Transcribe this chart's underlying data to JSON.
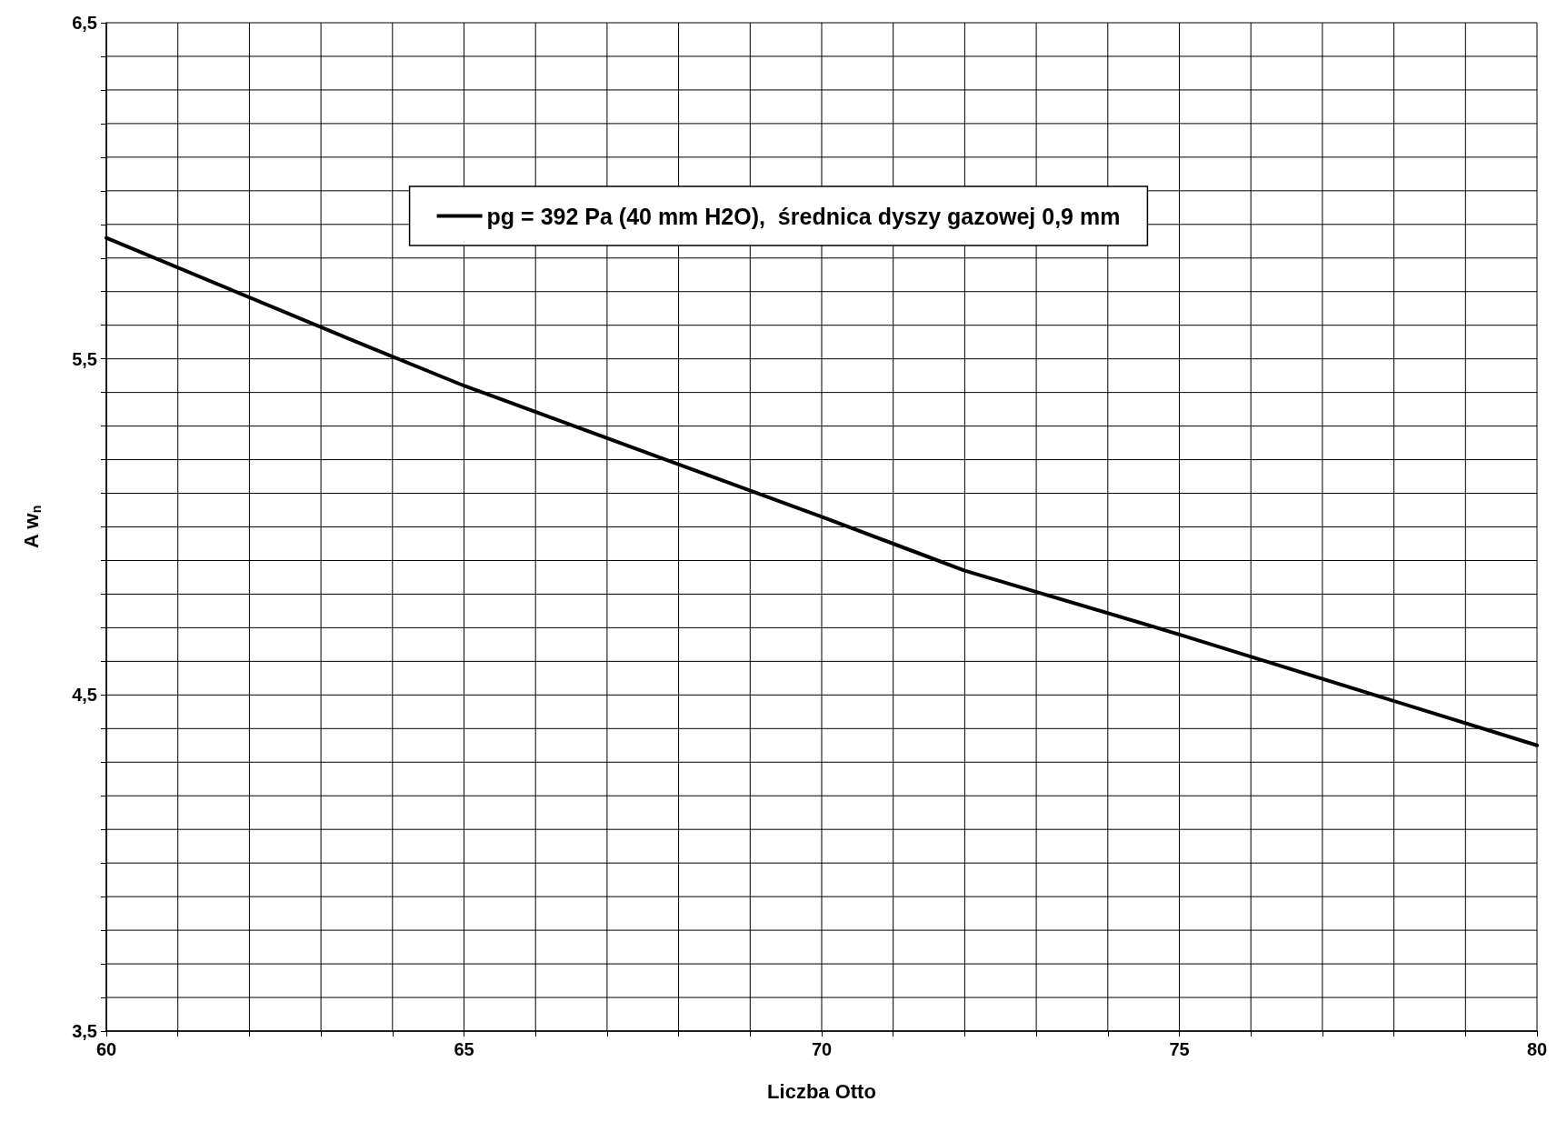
{
  "chart_data": {
    "type": "line",
    "xlabel": "Liczba Otto",
    "ylabel": "A w$_{n}$",
    "series": [
      {
        "name": "pg = 392 Pa (40 mm H2O),  średnica dyszy gazowej 0,9 mm",
        "color": "#000000",
        "x": [
          60,
          63.5,
          65,
          70,
          72,
          75,
          80
        ],
        "values": [
          5.86,
          5.55,
          5.42,
          5.03,
          4.87,
          4.68,
          4.35
        ]
      }
    ],
    "xlim": [
      60,
      80
    ],
    "xticks": [
      60,
      {
        "value": 61,
        "label": null
      },
      {
        "value": 62,
        "label": null
      },
      {
        "value": 63,
        "label": null
      },
      {
        "value": 64,
        "label": null
      },
      65,
      {
        "value": 66,
        "label": null
      },
      {
        "value": 67,
        "label": null
      },
      {
        "value": 68,
        "label": null
      },
      {
        "value": 69,
        "label": null
      },
      70,
      {
        "value": 71,
        "label": null
      },
      {
        "value": 72,
        "label": null
      },
      {
        "value": 73,
        "label": null
      },
      {
        "value": 74,
        "label": null
      },
      75,
      {
        "value": 76,
        "label": null
      },
      {
        "value": 77,
        "label": null
      },
      {
        "value": 78,
        "label": null
      },
      {
        "value": 79,
        "label": null
      },
      80
    ],
    "ylim": [
      3.5,
      6.5
    ],
    "yticks": [
      {
        "value": 3.5,
        "label": "3,5"
      },
      {
        "value": 3.6,
        "label": null
      },
      {
        "value": 3.7,
        "label": null
      },
      {
        "value": 3.8,
        "label": null
      },
      {
        "value": 3.9,
        "label": null
      },
      {
        "value": 4.0,
        "label": null
      },
      {
        "value": 4.1,
        "label": null
      },
      {
        "value": 4.2,
        "label": null
      },
      {
        "value": 4.3,
        "label": null
      },
      {
        "value": 4.4,
        "label": null
      },
      {
        "value": 4.5,
        "label": "4,5"
      },
      {
        "value": 4.6,
        "label": null
      },
      {
        "value": 4.7,
        "label": null
      },
      {
        "value": 4.8,
        "label": null
      },
      {
        "value": 4.9,
        "label": null
      },
      {
        "value": 5.0,
        "label": null
      },
      {
        "value": 5.1,
        "label": null
      },
      {
        "value": 5.2,
        "label": null
      },
      {
        "value": 5.3,
        "label": null
      },
      {
        "value": 5.4,
        "label": null
      },
      {
        "value": 5.5,
        "label": "5,5"
      },
      {
        "value": 5.6,
        "label": null
      },
      {
        "value": 5.7,
        "label": null
      },
      {
        "value": 5.8,
        "label": null
      },
      {
        "value": 5.9,
        "label": null
      },
      {
        "value": 6.0,
        "label": null
      },
      {
        "value": 6.1,
        "label": null
      },
      {
        "value": 6.2,
        "label": null
      },
      {
        "value": 6.3,
        "label": null
      },
      {
        "value": 6.4,
        "label": null
      },
      {
        "value": 6.5,
        "label": "6,5"
      }
    ],
    "grid": true,
    "legend": "top",
    "marker": "none",
    "line_style": "solid"
  }
}
